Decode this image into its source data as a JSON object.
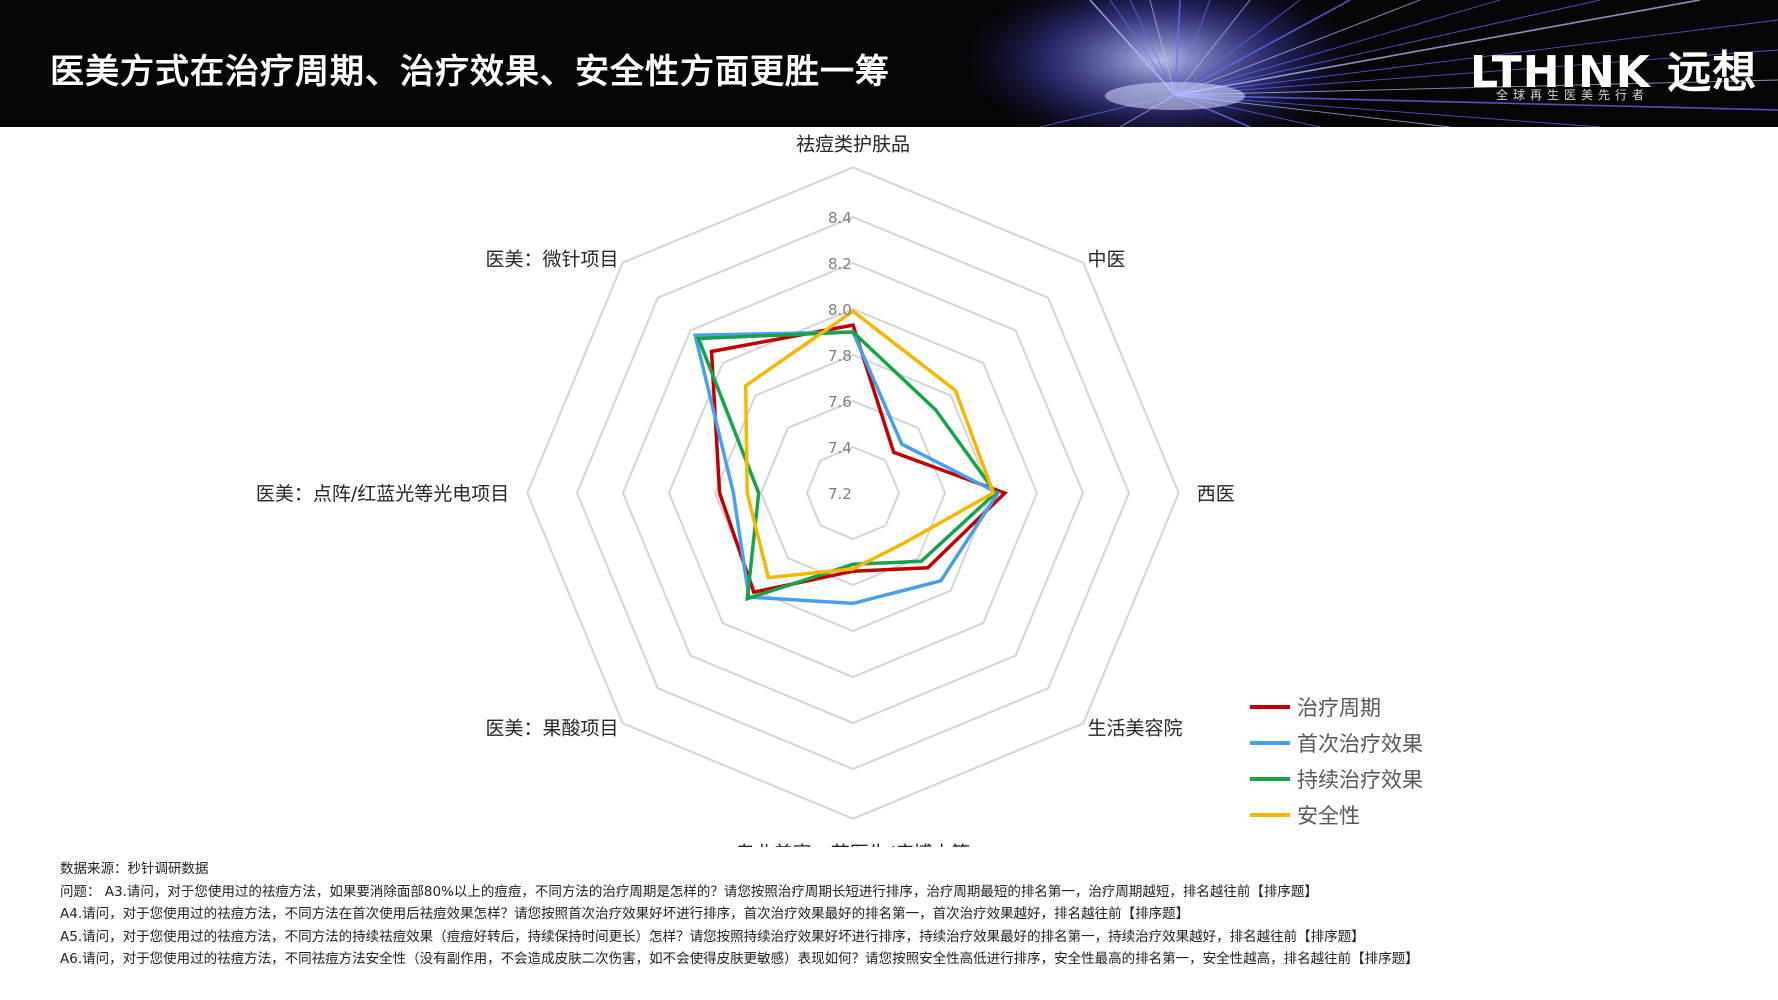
{
  "header": {
    "title": "医美方式在治疗周期、治疗效果、安全性方面更胜一筹",
    "brand_name": "LTHINK 远想",
    "brand_tagline": "全球再生医美先行者"
  },
  "chart_data": {
    "type": "radar",
    "axes": [
      "祛痘类护肤品",
      "中医",
      "西医",
      "生活美容院",
      "专业美容：苗医生/痘博士等",
      "医美：果酸项目",
      "医美：点阵/红蓝光等光电项目",
      "医美：微针项目"
    ],
    "r_ticks": [
      "7.2",
      "7.4",
      "7.6",
      "7.8",
      "8.0",
      "8.2",
      "8.4"
    ],
    "r_range": [
      7.2,
      8.4
    ],
    "grid": true,
    "legend_position": "bottom-right",
    "series": [
      {
        "name": "治疗周期",
        "color": "#C00000",
        "values": [
          7.93,
          7.45,
          7.86,
          7.66,
          7.54,
          7.81,
          7.78,
          8.07
        ]
      },
      {
        "name": "首次治疗效果",
        "color": "#4A9EF0",
        "values": [
          7.9,
          7.5,
          7.83,
          7.74,
          7.68,
          7.84,
          7.72,
          8.17
        ]
      },
      {
        "name": "持续治疗效果",
        "color": "#17A34A",
        "values": [
          7.9,
          7.71,
          7.82,
          7.62,
          7.51,
          7.85,
          7.61,
          8.15
        ]
      },
      {
        "name": "安全性",
        "color": "#F5B800",
        "values": [
          7.99,
          7.83,
          7.81,
          7.51,
          7.53,
          7.72,
          7.66,
          7.86
        ]
      }
    ]
  },
  "notes": {
    "source": "数据来源：秒针调研数据",
    "q_a3": "问题：  A3.请问，对于您使用过的祛痘方法，如果要消除面部80%以上的痘痘，不同方法的治疗周期是怎样的？请您按照治疗周期长短进行排序，治疗周期最短的排名第一，治疗周期越短，排名越往前【排序题】",
    "q_a4": "A4.请问，对于您使用过的祛痘方法，不同方法在首次使用后祛痘效果怎样？请您按照首次治疗效果好坏进行排序，首次治疗效果最好的排名第一，首次治疗效果越好，排名越往前【排序题】",
    "q_a5": "A5.请问，对于您使用过的祛痘方法，不同方法的持续祛痘效果（痘痘好转后，持续保持时间更长）怎样？请您按照持续治疗效果好坏进行排序，持续治疗效果最好的排名第一，持续治疗效果越好，排名越往前【排序题】",
    "q_a6": "A6.请问，对于您使用过的祛痘方法，不同祛痘方法安全性（没有副作用，不会造成皮肤二次伤害，如不会使得皮肤更敏感）表现如何？请您按照安全性高低进行排序，安全性最高的排名第一，安全性越高，排名越往前【排序题】"
  }
}
